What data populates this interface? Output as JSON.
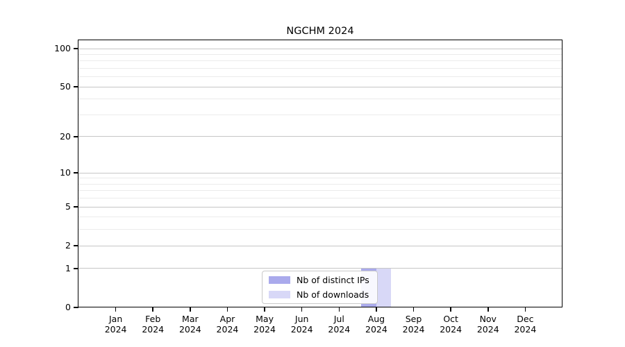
{
  "title": "NGCHM 2024",
  "chart_data": {
    "type": "bar",
    "title": "NGCHM 2024",
    "x_months": [
      "Jan",
      "Feb",
      "Mar",
      "Apr",
      "May",
      "Jun",
      "Jul",
      "Aug",
      "Sep",
      "Oct",
      "Nov",
      "Dec"
    ],
    "x_year": "2024",
    "categories": [
      "Jan 2024",
      "Feb 2024",
      "Mar 2024",
      "Apr 2024",
      "May 2024",
      "Jun 2024",
      "Jul 2024",
      "Aug 2024",
      "Sep 2024",
      "Oct 2024",
      "Nov 2024",
      "Dec 2024"
    ],
    "series": [
      {
        "name": "Nb of distinct IPs",
        "color": "#aaaaec",
        "values": [
          0,
          0,
          0,
          0,
          0,
          0,
          0,
          1,
          0,
          0,
          0,
          0
        ]
      },
      {
        "name": "Nb of downloads",
        "color": "#d8d8f7",
        "values": [
          0,
          0,
          0,
          0,
          0,
          0,
          0,
          1,
          0,
          0,
          0,
          0
        ]
      }
    ],
    "y_axis": {
      "scale": "log1p",
      "major_ticks": [
        0,
        1,
        2,
        5,
        10,
        20,
        50,
        100
      ],
      "minor_gridlines": [
        3,
        4,
        6,
        7,
        8,
        9,
        30,
        40,
        60,
        70,
        80,
        90
      ],
      "ylim_top_approx": 116
    },
    "xlabel": "",
    "ylabel": "",
    "legend_position": "lower center",
    "grid": "horizontal",
    "colors": {
      "major_grid": "#c6c6c6",
      "minor_grid": "#ebebeb",
      "spine": "#000000",
      "background": "#ffffff"
    }
  }
}
